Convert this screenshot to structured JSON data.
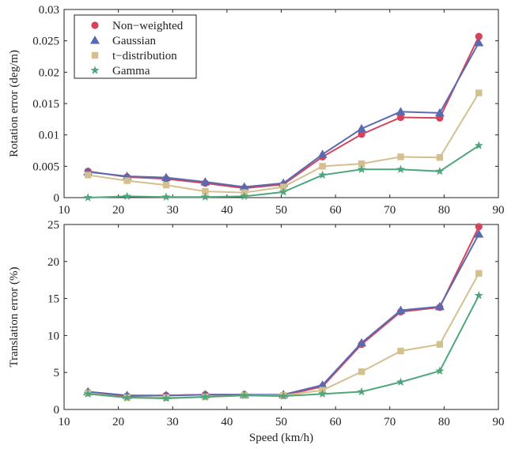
{
  "chart_data": [
    {
      "type": "line",
      "xlabel": "",
      "ylabel": "Rotation error (deg/m)",
      "xlim": [
        10,
        90
      ],
      "ylim": [
        0,
        0.03
      ],
      "x_ticks": [
        "10",
        "20",
        "30",
        "40",
        "50",
        "60",
        "70",
        "80",
        "90"
      ],
      "y_ticks": [
        "0",
        "0.005",
        "0.01",
        "0.015",
        "0.02",
        "0.025",
        "0.03"
      ],
      "grid": false,
      "legend": "top-left",
      "x": [
        14.4,
        21.6,
        28.8,
        36.0,
        43.2,
        50.4,
        57.6,
        64.8,
        72.0,
        79.2,
        86.4
      ],
      "series": [
        {
          "name": "Non−weighted",
          "marker": "circle",
          "color": "#d6425a",
          "values": [
            0.0042,
            0.0033,
            0.003,
            0.0023,
            0.0015,
            0.0021,
            0.0065,
            0.0101,
            0.0128,
            0.0127,
            0.0257
          ]
        },
        {
          "name": "Gaussian",
          "marker": "triangle",
          "color": "#5a6ab0",
          "values": [
            0.0041,
            0.0034,
            0.0032,
            0.0025,
            0.0017,
            0.0023,
            0.0069,
            0.011,
            0.0137,
            0.0135,
            0.0247
          ]
        },
        {
          "name": "t−distribution",
          "marker": "square",
          "color": "#d4c08e",
          "values": [
            0.0036,
            0.0027,
            0.002,
            0.001,
            0.0008,
            0.0017,
            0.005,
            0.0054,
            0.0065,
            0.0064,
            0.0167
          ]
        },
        {
          "name": "Gamma",
          "marker": "star",
          "color": "#4fa67c",
          "values": [
            0.0,
            0.0002,
            0.0001,
            0.0001,
            0.0002,
            0.0009,
            0.0036,
            0.0045,
            0.0045,
            0.0042,
            0.0083
          ]
        }
      ]
    },
    {
      "type": "line",
      "xlabel": "Speed (km/h)",
      "ylabel": "Translation error (%)",
      "xlim": [
        10,
        90
      ],
      "ylim": [
        0,
        25
      ],
      "x_ticks": [
        "10",
        "20",
        "30",
        "40",
        "50",
        "60",
        "70",
        "80",
        "90"
      ],
      "y_ticks": [
        "0",
        "5",
        "10",
        "15",
        "20",
        "25"
      ],
      "grid": false,
      "legend": "none",
      "x": [
        14.4,
        21.6,
        28.8,
        36.0,
        43.2,
        50.4,
        57.6,
        64.8,
        72.0,
        79.2,
        86.4
      ],
      "series": [
        {
          "name": "Non−weighted",
          "marker": "circle",
          "color": "#d6425a",
          "values": [
            2.3,
            1.8,
            1.9,
            2.0,
            2.0,
            1.9,
            3.1,
            8.8,
            13.2,
            13.8,
            24.7
          ]
        },
        {
          "name": "Gaussian",
          "marker": "triangle",
          "color": "#5a6ab0",
          "values": [
            2.4,
            1.9,
            1.9,
            2.0,
            2.0,
            2.0,
            3.3,
            9.0,
            13.4,
            13.9,
            23.7
          ]
        },
        {
          "name": "t−distribution",
          "marker": "square",
          "color": "#d4c08e",
          "values": [
            2.2,
            1.6,
            1.6,
            1.7,
            1.9,
            1.9,
            2.6,
            5.1,
            7.9,
            8.8,
            18.4
          ]
        },
        {
          "name": "Gamma",
          "marker": "star",
          "color": "#4fa67c",
          "values": [
            2.1,
            1.6,
            1.5,
            1.7,
            1.9,
            1.8,
            2.1,
            2.4,
            3.7,
            5.2,
            15.4
          ]
        }
      ]
    }
  ]
}
